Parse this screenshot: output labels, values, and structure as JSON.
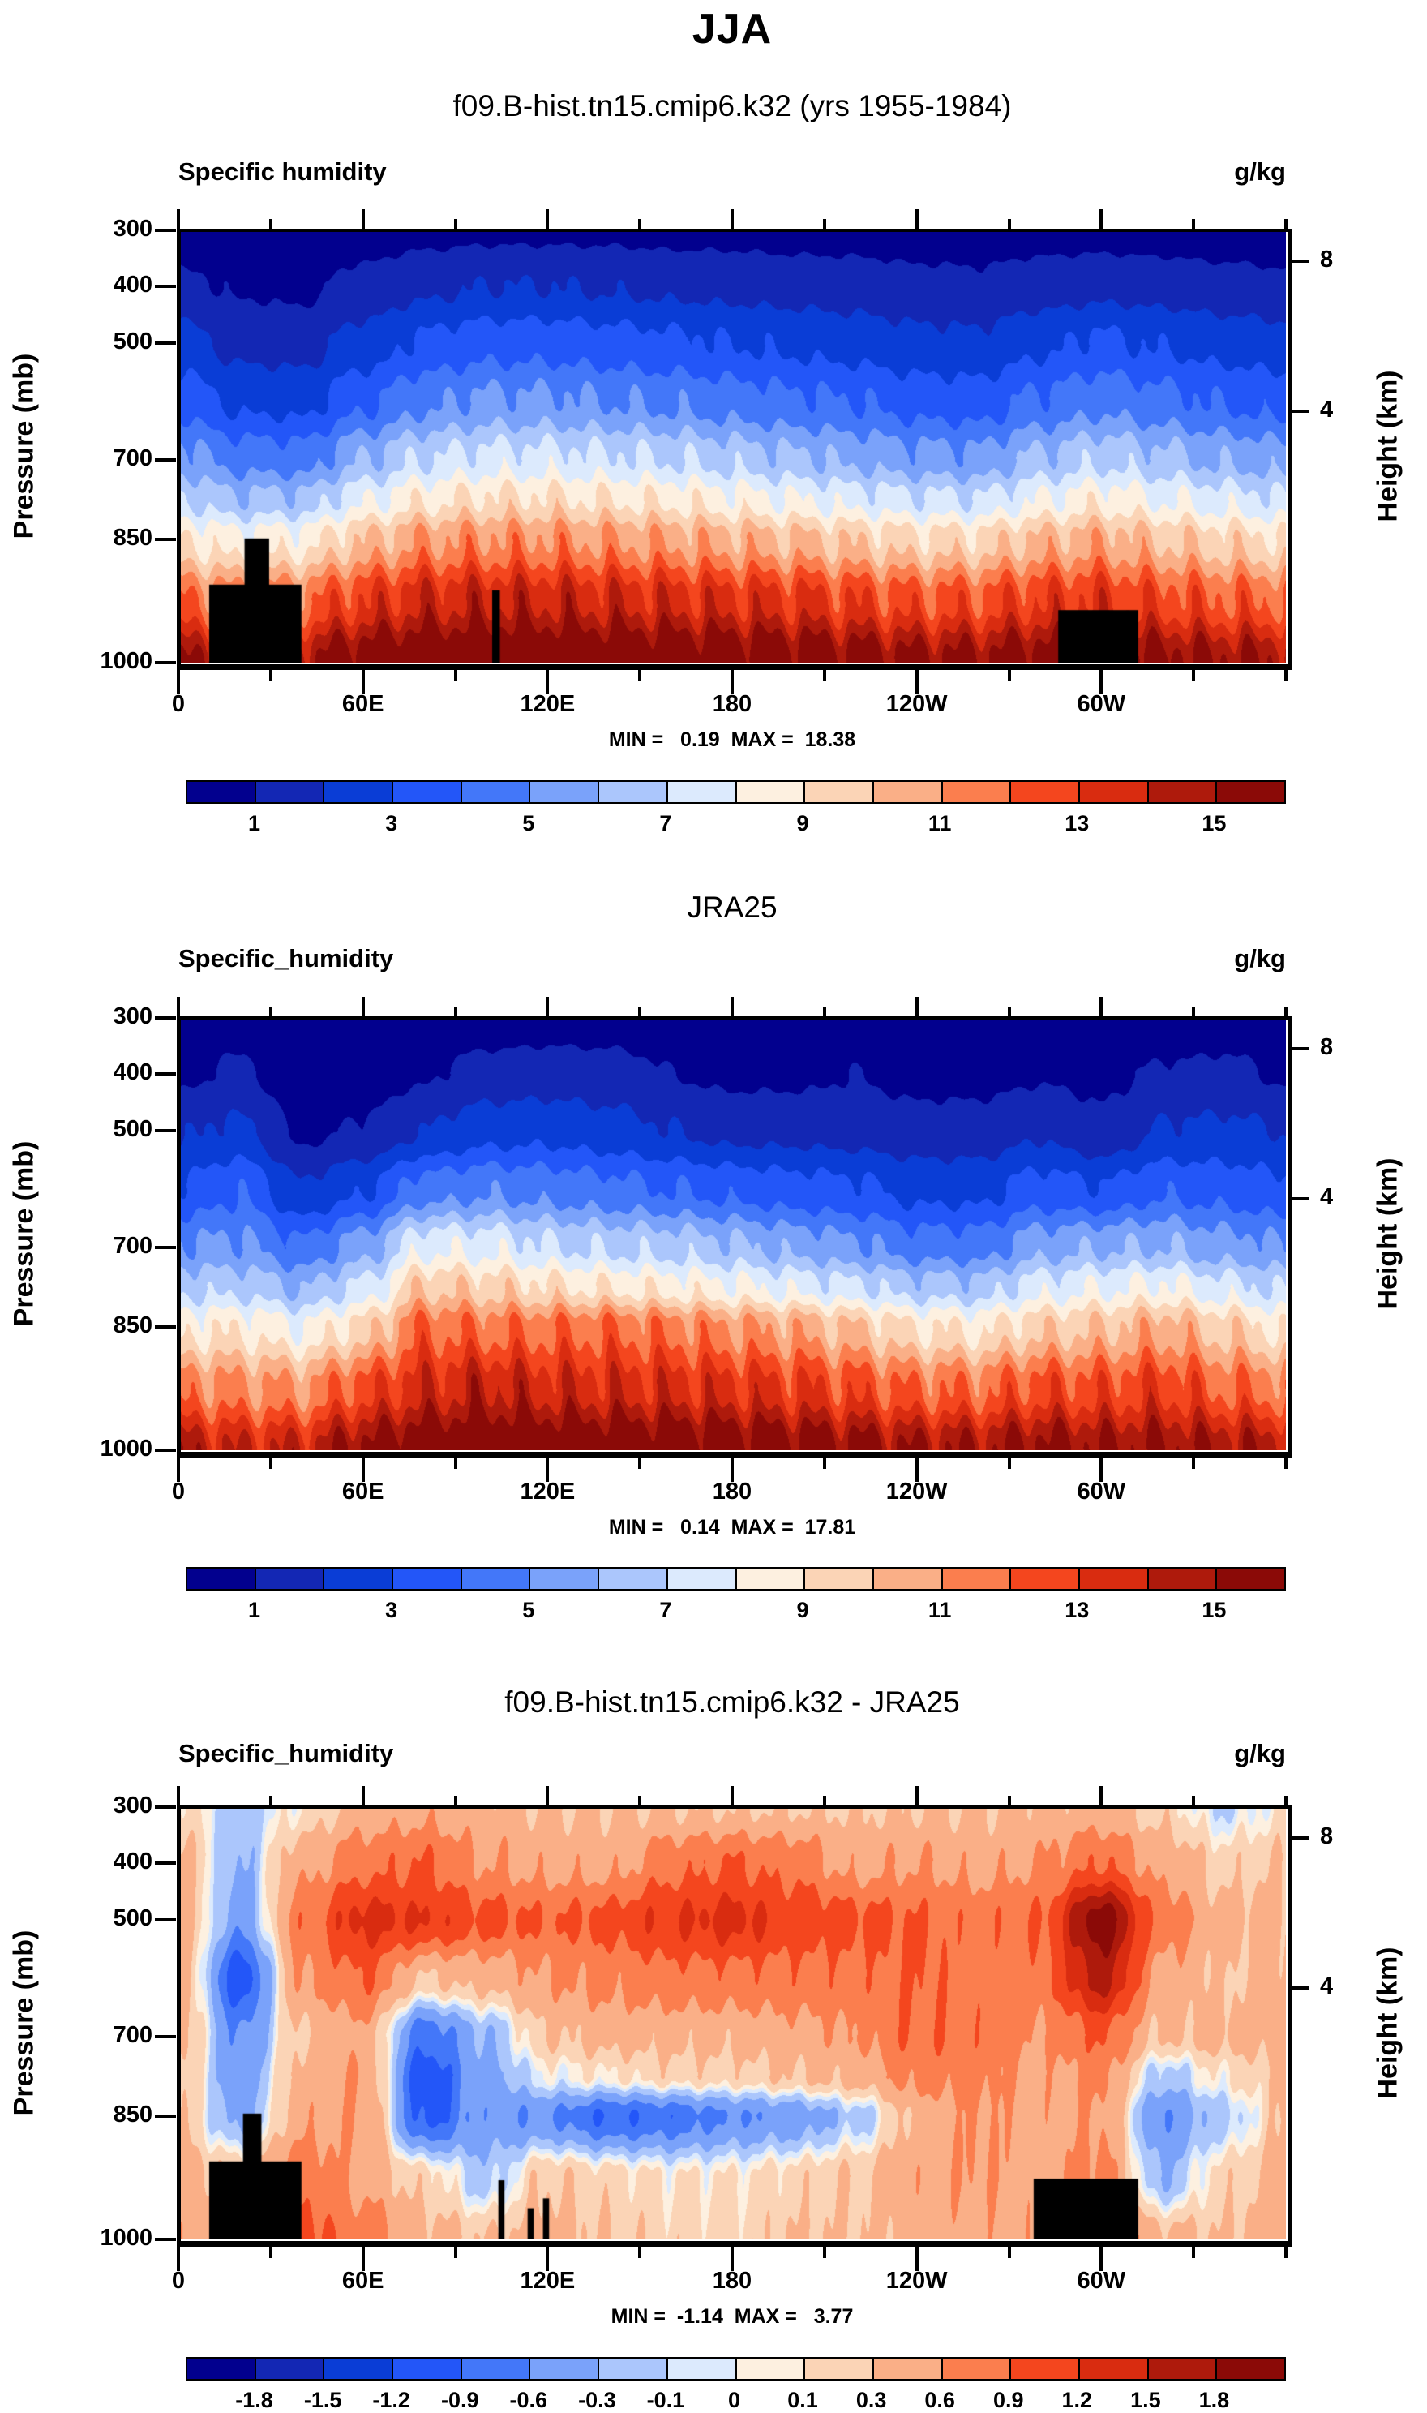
{
  "main_title": "JJA",
  "ylabel_left": "Pressure (mb)",
  "ylabel_right": "Height (km)",
  "palette": [
    "#02008E",
    "#1327B4",
    "#0A3DD6",
    "#2356F8",
    "#4377F9",
    "#7AA2FA",
    "#ABC6FC",
    "#DCEAFD",
    "#FDF0E0",
    "#FBD4B6",
    "#FAAF87",
    "#FB7E4E",
    "#F4461E",
    "#D92C10",
    "#AE1A0C",
    "#8B0A07"
  ],
  "x_axis": {
    "major_ticks": [
      {
        "lon": 0,
        "label": "0"
      },
      {
        "lon": 60,
        "label": "60E"
      },
      {
        "lon": 120,
        "label": "120E"
      },
      {
        "lon": 180,
        "label": "180"
      },
      {
        "lon": 240,
        "label": "120W"
      },
      {
        "lon": 300,
        "label": "60W"
      }
    ],
    "minor_lons": [
      30,
      90,
      150,
      210,
      270,
      330,
      360
    ]
  },
  "pressure_axis": {
    "ticks": [
      {
        "p": 300,
        "label": "300"
      },
      {
        "p": 400,
        "label": "400"
      },
      {
        "p": 500,
        "label": "500"
      },
      {
        "p": 700,
        "label": "700"
      },
      {
        "p": 850,
        "label": "850"
      },
      {
        "p": 1000,
        "label": "1000"
      }
    ],
    "p_to_frac": [
      [
        300,
        0
      ],
      [
        400,
        0.129
      ],
      [
        500,
        0.261
      ],
      [
        700,
        0.531
      ],
      [
        850,
        0.715
      ],
      [
        1000,
        1.0
      ]
    ]
  },
  "height_axis": {
    "ticks": [
      {
        "km": "8",
        "frac": 0.071
      },
      {
        "km": "4",
        "frac": 0.418
      }
    ]
  },
  "chart_data": [
    {
      "type": "heatmap",
      "panel": "model",
      "title": "f09.B-hist.tn15.cmip6.k32 (yrs 1955-1984)",
      "field_label": "Specific humidity",
      "units": "g/kg",
      "stats_text": "MIN =   0.19  MAX =  18.38",
      "min": 0.19,
      "max": 18.38,
      "contour_levels": [
        1,
        2,
        3,
        4,
        5,
        6,
        7,
        8,
        9,
        10,
        11,
        12,
        13,
        14,
        15
      ],
      "colorbar_labels": [
        {
          "boundary": 1,
          "text": "1"
        },
        {
          "boundary": 3,
          "text": "3"
        },
        {
          "boundary": 5,
          "text": "5"
        },
        {
          "boundary": 7,
          "text": "7"
        },
        {
          "boundary": 9,
          "text": "9"
        },
        {
          "boundary": 11,
          "text": "11"
        },
        {
          "boundary": 13,
          "text": "13"
        },
        {
          "boundary": 15,
          "text": "15"
        }
      ],
      "grid": {
        "lons": [
          0,
          20,
          40,
          60,
          80,
          100,
          120,
          140,
          160,
          180,
          200,
          220,
          240,
          260,
          280,
          300,
          320,
          340,
          360
        ],
        "plevs": [
          300,
          400,
          500,
          600,
          700,
          775,
          850,
          925,
          1000
        ],
        "values": [
          [
            0.4,
            0.3,
            0.3,
            0.5,
            0.7,
            0.8,
            0.8,
            0.8,
            0.7,
            0.7,
            0.6,
            0.6,
            0.5,
            0.5,
            0.6,
            0.6,
            0.5,
            0.4,
            0.4
          ],
          [
            1.2,
            0.9,
            0.8,
            1.3,
            1.8,
            2.0,
            2.0,
            1.9,
            1.8,
            1.7,
            1.6,
            1.5,
            1.3,
            1.2,
            1.5,
            1.7,
            1.6,
            1.4,
            1.2
          ],
          [
            2.4,
            1.7,
            1.6,
            2.4,
            3.2,
            3.6,
            3.6,
            3.4,
            3.2,
            3.0,
            2.8,
            2.6,
            2.3,
            2.2,
            2.8,
            3.2,
            2.9,
            2.6,
            2.4
          ],
          [
            3.6,
            2.8,
            2.7,
            3.8,
            4.8,
            5.2,
            5.2,
            5.0,
            4.8,
            4.5,
            4.2,
            4.0,
            3.6,
            3.5,
            4.2,
            4.7,
            4.3,
            3.9,
            3.6
          ],
          [
            5.5,
            4.6,
            4.5,
            6.0,
            7.0,
            7.4,
            7.4,
            7.2,
            7.0,
            6.6,
            6.2,
            5.8,
            5.4,
            5.3,
            6.2,
            6.8,
            6.3,
            5.8,
            5.5
          ],
          [
            7.0,
            6.2,
            6.3,
            7.8,
            8.8,
            9.2,
            9.2,
            9.0,
            8.8,
            8.4,
            8.0,
            7.6,
            7.2,
            7.1,
            8.0,
            8.6,
            8.0,
            7.5,
            7.1
          ],
          [
            9.0,
            8.4,
            8.6,
            10.0,
            11.0,
            11.2,
            11.2,
            11.0,
            10.8,
            10.5,
            10.2,
            9.8,
            9.4,
            9.4,
            10.2,
            10.6,
            10.0,
            9.5,
            9.1
          ],
          [
            12.0,
            11.5,
            11.8,
            13.0,
            13.8,
            14.0,
            14.0,
            13.8,
            13.6,
            13.4,
            13.2,
            12.8,
            12.4,
            12.4,
            13.0,
            13.2,
            12.6,
            12.2,
            12.0
          ],
          [
            15.0,
            14.5,
            15.0,
            16.2,
            16.8,
            17.0,
            17.0,
            16.8,
            16.6,
            16.4,
            16.2,
            15.8,
            15.4,
            15.4,
            16.0,
            16.0,
            15.6,
            15.2,
            15.0
          ]
        ]
      },
      "topography": [
        [
          10,
          40,
          905
        ],
        [
          21.5,
          29.5,
          848
        ],
        [
          102,
          104.5,
          912
        ],
        [
          286,
          312,
          936
        ]
      ]
    },
    {
      "type": "heatmap",
      "panel": "reanalysis",
      "title": "JRA25",
      "field_label": "Specific_humidity",
      "units": "g/kg",
      "stats_text": "MIN =   0.14  MAX =  17.81",
      "min": 0.14,
      "max": 17.81,
      "contour_levels": [
        1,
        2,
        3,
        4,
        5,
        6,
        7,
        8,
        9,
        10,
        11,
        12,
        13,
        14,
        15
      ],
      "colorbar_labels": [
        {
          "boundary": 1,
          "text": "1"
        },
        {
          "boundary": 3,
          "text": "3"
        },
        {
          "boundary": 5,
          "text": "5"
        },
        {
          "boundary": 7,
          "text": "7"
        },
        {
          "boundary": 9,
          "text": "9"
        },
        {
          "boundary": 11,
          "text": "11"
        },
        {
          "boundary": 13,
          "text": "13"
        },
        {
          "boundary": 15,
          "text": "15"
        }
      ],
      "grid": {
        "lons": [
          0,
          20,
          40,
          60,
          80,
          100,
          120,
          140,
          160,
          180,
          200,
          220,
          240,
          260,
          280,
          300,
          320,
          340,
          360
        ],
        "plevs": [
          300,
          400,
          500,
          600,
          700,
          775,
          850,
          925,
          1000
        ],
        "values": [
          [
            0.2,
            0.5,
            0.2,
            0.1,
            0.2,
            0.4,
            0.5,
            0.5,
            0.4,
            0.4,
            0.3,
            0.3,
            0.2,
            0.2,
            0.2,
            0.2,
            0.3,
            0.5,
            0.3
          ],
          [
            0.8,
            1.2,
            0.3,
            0.5,
            0.9,
            1.4,
            1.5,
            1.4,
            1.0,
            0.8,
            0.8,
            1.0,
            0.7,
            0.7,
            0.9,
            0.8,
            1.1,
            1.2,
            0.9
          ],
          [
            1.9,
            2.2,
            0.8,
            1.1,
            2.0,
            2.6,
            2.7,
            2.4,
            2.0,
            1.7,
            1.7,
            1.6,
            1.4,
            1.4,
            1.9,
            1.2,
            2.1,
            2.2,
            2.0
          ],
          [
            3.1,
            3.9,
            2.1,
            2.9,
            4.5,
            4.8,
            4.6,
            4.3,
            4.0,
            3.7,
            3.4,
            3.2,
            2.7,
            2.7,
            3.4,
            3.1,
            3.8,
            3.6,
            3.2
          ],
          [
            5.1,
            5.2,
            4.2,
            5.5,
            7.8,
            7.7,
            7.1,
            6.8,
            6.6,
            6.2,
            5.7,
            5.2,
            4.5,
            4.5,
            5.6,
            5.9,
            6.0,
            5.4,
            5.1
          ],
          [
            6.7,
            6.7,
            5.9,
            7.2,
            9.9,
            9.6,
            9.2,
            8.9,
            8.6,
            8.2,
            7.7,
            7.2,
            6.5,
            6.4,
            7.5,
            7.9,
            8.2,
            7.4,
            6.8
          ],
          [
            8.7,
            8.8,
            8.1,
            9.4,
            12.0,
            11.7,
            11.8,
            11.9,
            11.6,
            11.1,
            10.7,
            10.0,
            9.0,
            8.8,
            9.7,
            10.0,
            10.6,
            9.7,
            8.8
          ],
          [
            11.6,
            11.2,
            11.0,
            12.5,
            13.6,
            14.2,
            13.7,
            13.6,
            13.5,
            13.3,
            13.0,
            12.5,
            11.9,
            11.8,
            12.5,
            12.5,
            12.9,
            12.0,
            11.6
          ],
          [
            14.5,
            13.9,
            14.0,
            15.4,
            16.4,
            16.7,
            16.6,
            16.5,
            16.4,
            16.2,
            15.9,
            15.5,
            15.0,
            14.9,
            15.5,
            15.2,
            15.2,
            14.9,
            14.5
          ]
        ]
      },
      "topography": []
    },
    {
      "type": "heatmap",
      "panel": "difference",
      "title": "f09.B-hist.tn15.cmip6.k32 - JRA25",
      "field_label": "Specific_humidity",
      "units": "g/kg",
      "stats_text": "MIN =  -1.14  MAX =   3.77",
      "min": -1.14,
      "max": 3.77,
      "contour_levels": [
        -1.8,
        -1.5,
        -1.2,
        -0.9,
        -0.6,
        -0.3,
        -0.1,
        0,
        0.1,
        0.3,
        0.6,
        0.9,
        1.2,
        1.5,
        1.8
      ],
      "colorbar_labels": [
        {
          "boundary": 1,
          "text": "-1.8"
        },
        {
          "boundary": 2,
          "text": "-1.5"
        },
        {
          "boundary": 3,
          "text": "-1.2"
        },
        {
          "boundary": 4,
          "text": "-0.9"
        },
        {
          "boundary": 5,
          "text": "-0.6"
        },
        {
          "boundary": 6,
          "text": "-0.3"
        },
        {
          "boundary": 7,
          "text": "-0.1"
        },
        {
          "boundary": 8,
          "text": "0"
        },
        {
          "boundary": 9,
          "text": "0.1"
        },
        {
          "boundary": 10,
          "text": "0.3"
        },
        {
          "boundary": 11,
          "text": "0.6"
        },
        {
          "boundary": 12,
          "text": "0.9"
        },
        {
          "boundary": 13,
          "text": "1.2"
        },
        {
          "boundary": 14,
          "text": "1.5"
        },
        {
          "boundary": 15,
          "text": "1.8"
        }
      ],
      "grid": {
        "lons": [
          0,
          20,
          40,
          60,
          80,
          100,
          120,
          140,
          160,
          180,
          200,
          220,
          240,
          260,
          280,
          300,
          320,
          340,
          360
        ],
        "plevs": [
          300,
          400,
          500,
          600,
          700,
          775,
          850,
          925,
          1000
        ],
        "values": [
          [
            0.2,
            -0.2,
            0.1,
            0.4,
            0.5,
            0.4,
            0.3,
            0.3,
            0.3,
            0.3,
            0.3,
            0.3,
            0.3,
            0.3,
            0.4,
            0.4,
            0.2,
            -0.1,
            0.1
          ],
          [
            0.4,
            -0.3,
            0.5,
            0.8,
            0.9,
            0.6,
            0.5,
            0.5,
            0.8,
            0.9,
            0.8,
            0.5,
            0.6,
            0.5,
            0.6,
            0.9,
            0.5,
            0.2,
            0.3
          ],
          [
            0.5,
            -0.5,
            0.8,
            1.3,
            1.2,
            1.0,
            0.9,
            1.0,
            1.2,
            1.3,
            1.1,
            1.0,
            0.9,
            0.8,
            0.9,
            2.0,
            0.8,
            0.4,
            0.4
          ],
          [
            0.5,
            -1.1,
            0.6,
            0.9,
            0.3,
            0.4,
            0.6,
            0.7,
            0.8,
            0.8,
            0.8,
            0.8,
            0.9,
            0.8,
            0.8,
            1.6,
            0.5,
            0.3,
            0.4
          ],
          [
            0.4,
            -0.6,
            0.3,
            0.5,
            -0.8,
            -0.3,
            0.3,
            0.4,
            0.4,
            0.4,
            0.5,
            0.6,
            0.9,
            0.8,
            0.6,
            0.9,
            0.3,
            0.4,
            0.4
          ],
          [
            0.3,
            -0.5,
            0.4,
            0.6,
            -1.1,
            -0.4,
            0.0,
            0.1,
            0.2,
            0.2,
            0.3,
            0.4,
            0.7,
            0.7,
            0.5,
            0.7,
            -0.2,
            0.1,
            0.3
          ],
          [
            0.3,
            -0.4,
            0.5,
            0.6,
            -1.0,
            -0.5,
            -0.6,
            -0.9,
            -0.8,
            -0.6,
            -0.5,
            -0.2,
            0.4,
            0.6,
            0.5,
            0.6,
            -0.6,
            -0.2,
            0.3
          ],
          [
            0.4,
            0.3,
            0.8,
            0.5,
            0.2,
            -0.2,
            0.3,
            0.2,
            0.1,
            0.1,
            0.2,
            0.3,
            0.5,
            0.6,
            0.5,
            0.7,
            -0.3,
            0.2,
            0.4
          ],
          [
            0.5,
            0.6,
            1.0,
            0.8,
            0.4,
            0.3,
            0.4,
            0.3,
            0.2,
            0.2,
            0.3,
            0.3,
            0.4,
            0.5,
            0.5,
            0.8,
            0.4,
            0.3,
            0.5
          ]
        ]
      },
      "topography": [
        [
          10,
          40,
          905
        ],
        [
          21,
          27,
          845
        ],
        [
          104,
          106,
          928
        ],
        [
          113.5,
          115.5,
          962
        ],
        [
          118.5,
          120.5,
          950
        ],
        [
          278,
          312,
          926
        ]
      ]
    }
  ]
}
